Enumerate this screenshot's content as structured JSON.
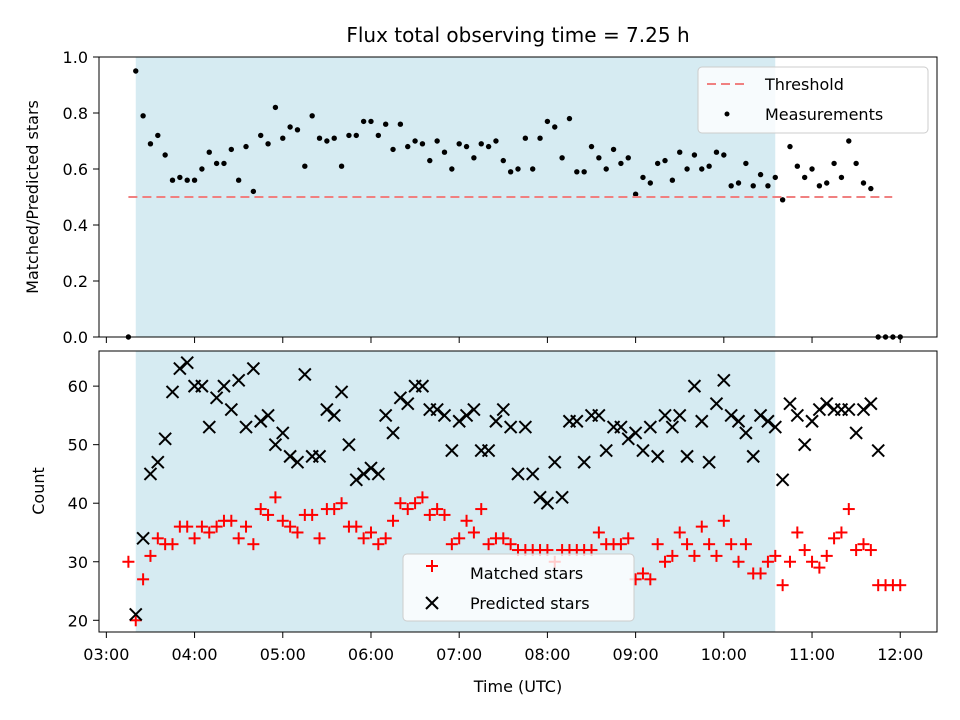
{
  "chart_data": [
    {
      "type": "scatter",
      "title": "Flux total observing time = 7.25 h",
      "xlabel": "",
      "ylabel": "Matched/Predicted stars",
      "ylim": [
        0,
        1
      ],
      "yticks": [
        "0.0",
        "0.2",
        "0.4",
        "0.6",
        "0.8",
        "1.0"
      ],
      "xlim": [
        "02:55",
        "12:25"
      ],
      "shaded_region": {
        "start": "03:20",
        "end": "10:35",
        "color": "#add8e6"
      },
      "threshold": {
        "name": "Threshold",
        "value": 0.5,
        "color": "#f08080"
      },
      "legend": {
        "position": "upper right",
        "entries": [
          "Threshold",
          "Measurements"
        ]
      },
      "series": [
        {
          "name": "Measurements",
          "color": "#000000",
          "marker": "dot",
          "x": [
            "03:15",
            "03:20",
            "03:25",
            "03:30",
            "03:35",
            "03:40",
            "03:45",
            "03:50",
            "03:55",
            "04:00",
            "04:05",
            "04:10",
            "04:15",
            "04:20",
            "04:25",
            "04:30",
            "04:35",
            "04:40",
            "04:45",
            "04:50",
            "04:55",
            "05:00",
            "05:05",
            "05:10",
            "05:15",
            "05:20",
            "05:25",
            "05:30",
            "05:35",
            "05:40",
            "05:45",
            "05:50",
            "05:55",
            "06:00",
            "06:05",
            "06:10",
            "06:15",
            "06:20",
            "06:25",
            "06:30",
            "06:35",
            "06:40",
            "06:45",
            "06:50",
            "06:55",
            "07:00",
            "07:05",
            "07:10",
            "07:15",
            "07:20",
            "07:25",
            "07:30",
            "07:35",
            "07:40",
            "07:45",
            "07:50",
            "07:55",
            "08:00",
            "08:05",
            "08:10",
            "08:15",
            "08:20",
            "08:25",
            "08:30",
            "08:35",
            "08:40",
            "08:45",
            "08:50",
            "08:55",
            "09:00",
            "09:05",
            "09:10",
            "09:15",
            "09:20",
            "09:25",
            "09:30",
            "09:35",
            "09:40",
            "09:45",
            "09:50",
            "09:55",
            "10:00",
            "10:05",
            "10:10",
            "10:15",
            "10:20",
            "10:25",
            "10:30",
            "10:35",
            "10:40",
            "10:45",
            "10:50",
            "10:55",
            "11:00",
            "11:05",
            "11:10",
            "11:15",
            "11:20",
            "11:25",
            "11:30",
            "11:35",
            "11:40",
            "11:45",
            "11:50",
            "11:55",
            "12:00"
          ],
          "y": [
            0.0,
            0.95,
            0.79,
            0.69,
            0.72,
            0.65,
            0.56,
            0.57,
            0.56,
            0.56,
            0.6,
            0.66,
            0.62,
            0.62,
            0.67,
            0.56,
            0.68,
            0.52,
            0.72,
            0.69,
            0.82,
            0.71,
            0.75,
            0.74,
            0.61,
            0.79,
            0.71,
            0.7,
            0.71,
            0.61,
            0.72,
            0.72,
            0.77,
            0.77,
            0.72,
            0.76,
            0.67,
            0.76,
            0.68,
            0.7,
            0.69,
            0.63,
            0.7,
            0.66,
            0.6,
            0.69,
            0.68,
            0.64,
            0.69,
            0.68,
            0.7,
            0.63,
            0.59,
            0.6,
            0.71,
            0.6,
            0.71,
            0.77,
            0.75,
            0.64,
            0.78,
            0.59,
            0.59,
            0.68,
            0.64,
            0.6,
            0.67,
            0.62,
            0.64,
            0.51,
            0.57,
            0.55,
            0.62,
            0.63,
            0.56,
            0.66,
            0.6,
            0.65,
            0.6,
            0.61,
            0.66,
            0.65,
            0.54,
            0.55,
            0.62,
            0.54,
            0.58,
            0.54,
            0.57,
            0.49,
            0.68,
            0.61,
            0.57,
            0.6,
            0.54,
            0.55,
            0.62,
            0.57,
            0.7,
            0.62,
            0.55,
            0.53,
            0.0,
            0.0,
            0.0,
            0.0
          ]
        }
      ]
    },
    {
      "type": "scatter",
      "title": "",
      "xlabel": "Time (UTC)",
      "ylabel": "Count",
      "ylim": [
        18,
        66
      ],
      "yticks": [
        "20",
        "30",
        "40",
        "50",
        "60"
      ],
      "xlim": [
        "02:55",
        "12:25"
      ],
      "xticks": [
        "03:00",
        "04:00",
        "05:00",
        "06:00",
        "07:00",
        "08:00",
        "09:00",
        "10:00",
        "11:00",
        "12:00"
      ],
      "shaded_region": {
        "start": "03:20",
        "end": "10:35",
        "color": "#add8e6"
      },
      "legend": {
        "position": "lower center",
        "entries": [
          "Matched stars",
          "Predicted stars"
        ]
      },
      "series": [
        {
          "name": "Matched stars",
          "color": "#ff0000",
          "marker": "plus",
          "x": [
            "03:15",
            "03:20",
            "03:25",
            "03:30",
            "03:35",
            "03:40",
            "03:45",
            "03:50",
            "03:55",
            "04:00",
            "04:05",
            "04:10",
            "04:15",
            "04:20",
            "04:25",
            "04:30",
            "04:35",
            "04:40",
            "04:45",
            "04:50",
            "04:55",
            "05:00",
            "05:05",
            "05:10",
            "05:15",
            "05:20",
            "05:25",
            "05:30",
            "05:35",
            "05:40",
            "05:45",
            "05:50",
            "05:55",
            "06:00",
            "06:05",
            "06:10",
            "06:15",
            "06:20",
            "06:25",
            "06:30",
            "06:35",
            "06:40",
            "06:45",
            "06:50",
            "06:55",
            "07:00",
            "07:05",
            "07:10",
            "07:15",
            "07:20",
            "07:25",
            "07:30",
            "07:35",
            "07:40",
            "07:45",
            "07:50",
            "07:55",
            "08:00",
            "08:05",
            "08:10",
            "08:15",
            "08:20",
            "08:25",
            "08:30",
            "08:35",
            "08:40",
            "08:45",
            "08:50",
            "08:55",
            "09:00",
            "09:05",
            "09:10",
            "09:15",
            "09:20",
            "09:25",
            "09:30",
            "09:35",
            "09:40",
            "09:45",
            "09:50",
            "09:55",
            "10:00",
            "10:05",
            "10:10",
            "10:15",
            "10:20",
            "10:25",
            "10:30",
            "10:35",
            "10:40",
            "10:45",
            "10:50",
            "10:55",
            "11:00",
            "11:05",
            "11:10",
            "11:15",
            "11:20",
            "11:25",
            "11:30",
            "11:35",
            "11:40",
            "11:45",
            "11:50",
            "11:55",
            "12:00"
          ],
          "y": [
            30,
            20,
            27,
            31,
            34,
            33,
            33,
            36,
            36,
            34,
            36,
            35,
            36,
            37,
            37,
            34,
            36,
            33,
            39,
            38,
            41,
            37,
            36,
            35,
            38,
            38,
            34,
            39,
            39,
            40,
            36,
            36,
            34,
            35,
            33,
            34,
            37,
            40,
            39,
            40,
            41,
            38,
            39,
            38,
            33,
            34,
            37,
            35,
            39,
            33,
            34,
            34,
            33,
            32,
            32,
            32,
            32,
            32,
            30,
            32,
            32,
            32,
            32,
            32,
            35,
            33,
            33,
            33,
            34,
            27,
            28,
            27,
            33,
            30,
            31,
            35,
            33,
            31,
            36,
            33,
            31,
            37,
            33,
            30,
            33,
            28,
            28,
            30,
            31,
            26,
            30,
            35,
            32,
            30,
            29,
            31,
            34,
            35,
            39,
            32,
            33,
            32,
            26,
            26,
            26,
            26
          ]
        },
        {
          "name": "Predicted stars",
          "color": "#000000",
          "marker": "x",
          "x": [
            "03:20",
            "03:25",
            "03:30",
            "03:35",
            "03:40",
            "03:45",
            "03:50",
            "03:55",
            "04:00",
            "04:05",
            "04:10",
            "04:15",
            "04:20",
            "04:25",
            "04:30",
            "04:35",
            "04:40",
            "04:45",
            "04:50",
            "04:55",
            "05:00",
            "05:05",
            "05:10",
            "05:15",
            "05:20",
            "05:25",
            "05:30",
            "05:35",
            "05:40",
            "05:45",
            "05:50",
            "05:55",
            "06:00",
            "06:05",
            "06:10",
            "06:15",
            "06:20",
            "06:25",
            "06:30",
            "06:35",
            "06:40",
            "06:45",
            "06:50",
            "06:55",
            "07:00",
            "07:05",
            "07:10",
            "07:15",
            "07:20",
            "07:25",
            "07:30",
            "07:35",
            "07:40",
            "07:45",
            "07:50",
            "07:55",
            "08:00",
            "08:05",
            "08:10",
            "08:15",
            "08:20",
            "08:25",
            "08:30",
            "08:35",
            "08:40",
            "08:45",
            "08:50",
            "08:55",
            "09:00",
            "09:05",
            "09:10",
            "09:15",
            "09:20",
            "09:25",
            "09:30",
            "09:35",
            "09:40",
            "09:45",
            "09:50",
            "09:55",
            "10:00",
            "10:05",
            "10:10",
            "10:15",
            "10:20",
            "10:25",
            "10:30",
            "10:35",
            "10:40",
            "10:45",
            "10:50",
            "10:55",
            "11:00",
            "11:05",
            "11:10",
            "11:15",
            "11:20",
            "11:25",
            "11:30",
            "11:35",
            "11:40",
            "11:45"
          ],
          "y": [
            21,
            34,
            45,
            47,
            51,
            59,
            63,
            64,
            60,
            60,
            53,
            58,
            60,
            56,
            61,
            53,
            63,
            54,
            55,
            50,
            52,
            48,
            47,
            62,
            48,
            48,
            56,
            55,
            59,
            50,
            44,
            45,
            46,
            45,
            55,
            52,
            58,
            57,
            60,
            60,
            56,
            56,
            55,
            49,
            54,
            55,
            56,
            49,
            49,
            54,
            56,
            53,
            45,
            53,
            45,
            41,
            40,
            47,
            41,
            54,
            54,
            47,
            55,
            55,
            49,
            53,
            53,
            51,
            52,
            49,
            53,
            48,
            55,
            53,
            55,
            48,
            60,
            54,
            47,
            57,
            61,
            55,
            54,
            52,
            48,
            55,
            54,
            53,
            44,
            57,
            55,
            50,
            54,
            56,
            57,
            56,
            56,
            56,
            52,
            56,
            57,
            49
          ]
        }
      ]
    }
  ]
}
